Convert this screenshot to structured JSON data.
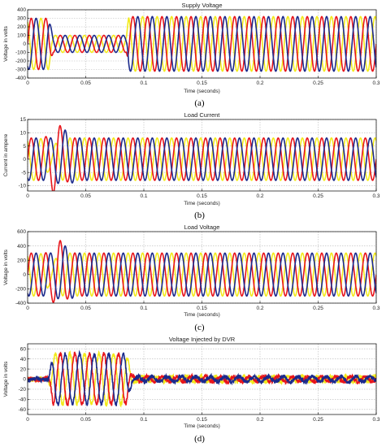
{
  "colors": {
    "phase_a": "#e8151b",
    "phase_b": "#1b2a8c",
    "phase_c": "#f2ea1c"
  },
  "chart_data": [
    {
      "type": "line",
      "caption": "(a)",
      "title": "Supply Voltage",
      "xlabel": "Time (seconds)",
      "ylabel": "Voltage in volts",
      "xlim": [
        0,
        0.3
      ],
      "ylim": [
        -400,
        400
      ],
      "xticks": [
        0,
        0.05,
        0.1,
        0.15,
        0.2,
        0.25,
        0.3
      ],
      "xtick_labels": [
        "0",
        "0.05",
        "0.1",
        "0.15",
        "0.2",
        "0.25",
        "0.3"
      ],
      "yticks": [
        -400,
        -300,
        -200,
        -100,
        0,
        100,
        200,
        300,
        400
      ],
      "ytick_labels": [
        "-400",
        "-300",
        "-200",
        "-100",
        "0",
        "100",
        "200",
        "300",
        "400"
      ],
      "grid": true,
      "frequency_hz": 80,
      "series_colors": [
        "#e8151b",
        "#1b2a8c",
        "#f2ea1c"
      ],
      "envelope": [
        [
          0,
          300
        ],
        [
          0.018,
          300
        ],
        [
          0.022,
          100
        ],
        [
          0.085,
          100
        ],
        [
          0.087,
          320
        ],
        [
          0.3,
          320
        ]
      ],
      "noise": 0
    },
    {
      "type": "line",
      "caption": "(b)",
      "title": "Load Current",
      "xlabel": "Time (seconds)",
      "ylabel": "Current in ampere",
      "xlim": [
        0,
        0.3
      ],
      "ylim": [
        -12,
        15
      ],
      "xticks": [
        0,
        0.05,
        0.1,
        0.15,
        0.2,
        0.25,
        0.3
      ],
      "xtick_labels": [
        "0",
        "0.05",
        "0.1",
        "0.15",
        "0.2",
        "0.25",
        "0.3"
      ],
      "yticks": [
        -10,
        -5,
        0,
        5,
        10,
        15
      ],
      "ytick_labels": [
        "-10",
        "-5",
        "0",
        "5",
        "10",
        "15"
      ],
      "grid": true,
      "frequency_hz": 80,
      "series_colors": [
        "#e8151b",
        "#1b2a8c",
        "#f2ea1c"
      ],
      "envelope": [
        [
          0,
          8
        ],
        [
          0.3,
          8
        ]
      ],
      "bumps": [
        [
          0.025,
          14,
          0.006
        ],
        [
          0.032,
          11,
          0.006
        ],
        [
          0.02,
          4,
          0.005
        ]
      ],
      "noise": 0
    },
    {
      "type": "line",
      "caption": "(c)",
      "title": "Load Voltage",
      "xlabel": "Time (seconds)",
      "ylabel": "Voltage in volts",
      "xlim": [
        0,
        0.3
      ],
      "ylim": [
        -400,
        600
      ],
      "xticks": [
        0,
        0.05,
        0.1,
        0.15,
        0.2,
        0.25,
        0.3
      ],
      "xtick_labels": [
        "0",
        "0.05",
        "0.1",
        "0.15",
        "0.2",
        "0.25",
        "0.3"
      ],
      "yticks": [
        -400,
        -200,
        0,
        200,
        400,
        600
      ],
      "ytick_labels": [
        "-400",
        "-200",
        "0",
        "200",
        "400",
        "600"
      ],
      "grid": true,
      "frequency_hz": 80,
      "series_colors": [
        "#e8151b",
        "#1b2a8c",
        "#f2ea1c"
      ],
      "envelope": [
        [
          0,
          300
        ],
        [
          0.3,
          300
        ]
      ],
      "bumps": [
        [
          0.027,
          480,
          0.006
        ],
        [
          0.032,
          400,
          0.006
        ],
        [
          0.02,
          150,
          0.005
        ]
      ],
      "noise": 0
    },
    {
      "type": "line",
      "caption": "(d)",
      "title": "Voltage Injected by DVR",
      "xlabel": "Time (seconds)",
      "ylabel": "Voltage in volts",
      "xlim": [
        0,
        0.3
      ],
      "ylim": [
        -70,
        70
      ],
      "xticks": [
        0,
        0.05,
        0.1,
        0.15,
        0.2,
        0.25,
        0.3
      ],
      "xtick_labels": [
        "0",
        "0.05",
        "0.1",
        "0.15",
        "0.2",
        "0.25",
        "0.3"
      ],
      "yticks": [
        -60,
        -40,
        -20,
        0,
        20,
        40,
        60
      ],
      "ytick_labels": [
        "-60",
        "-40",
        "-20",
        "0",
        "20",
        "40",
        "60"
      ],
      "grid": true,
      "frequency_hz": 80,
      "series_colors": [
        "#e8151b",
        "#1b2a8c",
        "#f2ea1c"
      ],
      "envelope": [
        [
          0,
          2
        ],
        [
          0.018,
          2
        ],
        [
          0.022,
          50
        ],
        [
          0.085,
          50
        ],
        [
          0.09,
          5
        ],
        [
          0.3,
          5
        ]
      ],
      "noise": 4
    }
  ]
}
